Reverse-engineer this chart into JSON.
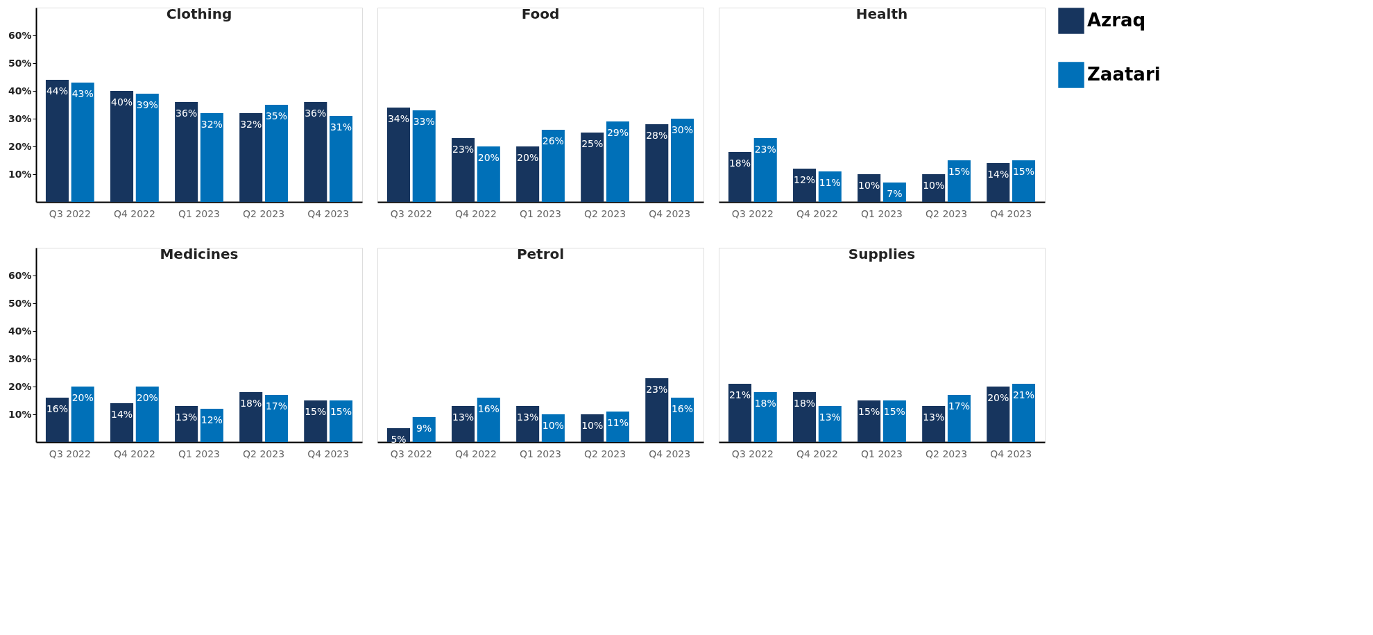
{
  "chart_data": [
    {
      "type": "bar",
      "title": "Clothing",
      "categories": [
        "Q3 2022",
        "Q4 2022",
        "Q1 2023",
        "Q2 2023",
        "Q4 2023"
      ],
      "ylim": [
        0,
        70
      ],
      "yticks": [
        {
          "value": 10,
          "label": "10%"
        },
        {
          "value": 20,
          "label": "20%"
        },
        {
          "value": 30,
          "label": "30%"
        },
        {
          "value": 40,
          "label": "40%"
        },
        {
          "value": 50,
          "label": "50%"
        },
        {
          "value": 60,
          "label": "60%"
        }
      ],
      "grid": false,
      "legend": "right",
      "series": [
        {
          "name": "Azraq",
          "color": "#17355e",
          "values": [
            44,
            40,
            36,
            32,
            36
          ],
          "value_labels": [
            "44%",
            "40%",
            "36%",
            "32%",
            "36%"
          ]
        },
        {
          "name": "Zaatari",
          "color": "#0070b8",
          "values": [
            43,
            39,
            32,
            35,
            31
          ],
          "value_labels": [
            "43%",
            "39%",
            "32%",
            "35%",
            "31%"
          ]
        }
      ]
    },
    {
      "type": "bar",
      "title": "Food",
      "categories": [
        "Q3 2022",
        "Q4 2022",
        "Q1 2023",
        "Q2 2023",
        "Q4 2023"
      ],
      "ylim": [
        0,
        70
      ],
      "tick_labels": "x",
      "grid": false,
      "legend": "right",
      "series": [
        {
          "name": "Azraq",
          "color": "#17355e",
          "values": [
            34,
            23,
            20,
            25,
            28
          ],
          "value_labels": [
            "34%",
            "23%",
            "20%",
            "25%",
            "28%"
          ]
        },
        {
          "name": "Zaatari",
          "color": "#0070b8",
          "values": [
            33,
            20,
            26,
            29,
            30
          ],
          "value_labels": [
            "33%",
            "20%",
            "26%",
            "29%",
            "30%"
          ]
        }
      ]
    },
    {
      "type": "bar",
      "title": "Health",
      "categories": [
        "Q3 2022",
        "Q4 2022",
        "Q1 2023",
        "Q2 2023",
        "Q4 2023"
      ],
      "ylim": [
        0,
        70
      ],
      "tick_labels": "x",
      "grid": false,
      "legend": "right",
      "series": [
        {
          "name": "Azraq",
          "color": "#17355e",
          "values": [
            18,
            12,
            10,
            10,
            14
          ],
          "value_labels": [
            "18%",
            "12%",
            "10%",
            "10%",
            "14%"
          ]
        },
        {
          "name": "Zaatari",
          "color": "#0070b8",
          "values": [
            23,
            11,
            7,
            15,
            15
          ],
          "value_labels": [
            "23%",
            "11%",
            "7%",
            "15%",
            "15%"
          ]
        }
      ]
    },
    {
      "type": "bar",
      "title": "Medicines",
      "categories": [
        "Q3 2022",
        "Q4 2022",
        "Q1 2023",
        "Q2 2023",
        "Q4 2023"
      ],
      "ylim": [
        0,
        70
      ],
      "yticks": [
        {
          "value": 10,
          "label": "10%"
        },
        {
          "value": 20,
          "label": "20%"
        },
        {
          "value": 30,
          "label": "30%"
        },
        {
          "value": 40,
          "label": "40%"
        },
        {
          "value": 50,
          "label": "50%"
        },
        {
          "value": 60,
          "label": "60%"
        }
      ],
      "grid": false,
      "legend": "right",
      "series": [
        {
          "name": "Azraq",
          "color": "#17355e",
          "values": [
            16,
            14,
            13,
            18,
            15
          ],
          "value_labels": [
            "16%",
            "14%",
            "13%",
            "18%",
            "15%"
          ]
        },
        {
          "name": "Zaatari",
          "color": "#0070b8",
          "values": [
            20,
            20,
            12,
            17,
            15
          ],
          "value_labels": [
            "20%",
            "20%",
            "12%",
            "17%",
            "15%"
          ]
        }
      ]
    },
    {
      "type": "bar",
      "title": "Petrol",
      "categories": [
        "Q3 2022",
        "Q4 2022",
        "Q1 2023",
        "Q2 2023",
        "Q4 2023"
      ],
      "ylim": [
        0,
        70
      ],
      "tick_labels": "x",
      "grid": false,
      "legend": "right",
      "series": [
        {
          "name": "Azraq",
          "color": "#17355e",
          "values": [
            5,
            13,
            13,
            10,
            23
          ],
          "value_labels": [
            "5%",
            "13%",
            "13%",
            "10%",
            "23%"
          ]
        },
        {
          "name": "Zaatari",
          "color": "#0070b8",
          "values": [
            9,
            16,
            10,
            11,
            16
          ],
          "value_labels": [
            "9%",
            "16%",
            "10%",
            "11%",
            "16%"
          ]
        }
      ]
    },
    {
      "type": "bar",
      "title": "Supplies",
      "categories": [
        "Q3 2022",
        "Q4 2022",
        "Q1 2023",
        "Q2 2023",
        "Q4 2023"
      ],
      "ylim": [
        0,
        70
      ],
      "tick_labels": "x",
      "grid": false,
      "legend": "right",
      "series": [
        {
          "name": "Azraq",
          "color": "#17355e",
          "values": [
            21,
            18,
            15,
            13,
            20
          ],
          "value_labels": [
            "21%",
            "18%",
            "15%",
            "13%",
            "20%"
          ]
        },
        {
          "name": "Zaatari",
          "color": "#0070b8",
          "values": [
            18,
            13,
            15,
            17,
            21
          ],
          "value_labels": [
            "18%",
            "13%",
            "15%",
            "17%",
            "21%"
          ]
        }
      ]
    }
  ]
}
